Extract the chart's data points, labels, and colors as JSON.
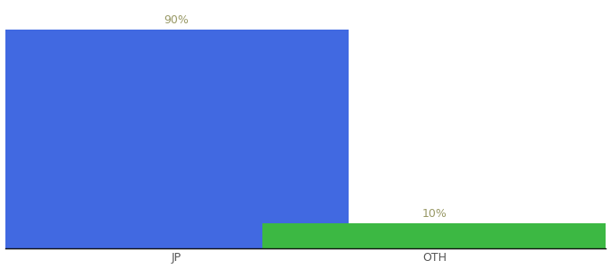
{
  "categories": [
    "JP",
    "OTH"
  ],
  "values": [
    90,
    10
  ],
  "bar_colors": [
    "#4169e1",
    "#3cb843"
  ],
  "label_texts": [
    "90%",
    "10%"
  ],
  "ylim": [
    0,
    100
  ],
  "background_color": "#ffffff",
  "bar_width": 0.6,
  "label_fontsize": 9,
  "tick_fontsize": 9,
  "label_color": "#999966",
  "tick_color": "#555555",
  "spine_color": "#111111",
  "spine_linewidth": 1.0,
  "bar_positions": [
    0.3,
    0.75
  ],
  "xlim": [
    0.0,
    1.05
  ]
}
